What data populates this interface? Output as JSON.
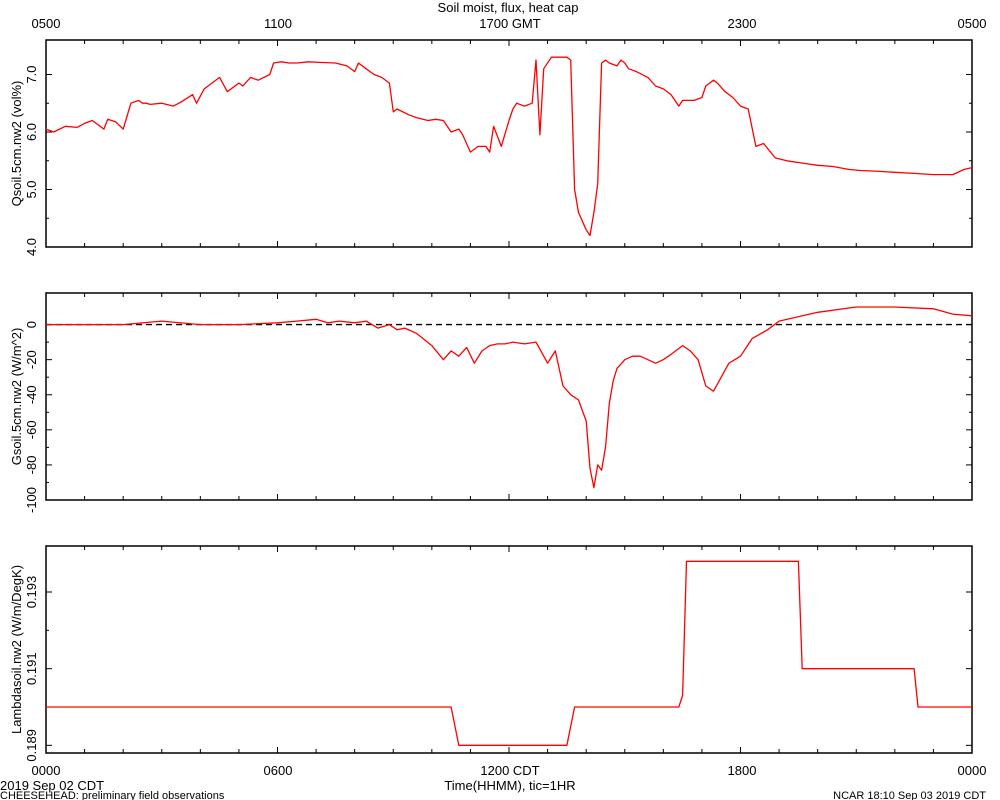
{
  "title": "Soil moist, flux, heat cap",
  "top_axis": {
    "tick_labels": [
      "0500",
      "1100",
      "1700 GMT",
      "2300",
      "0500"
    ]
  },
  "bottom_axis": {
    "tick_labels": [
      "0000",
      "0600",
      "1200 CDT",
      "1800",
      "0000"
    ],
    "xlabel": "Time(HHMM), tic=1HR"
  },
  "footer": {
    "date_left": "2019 Sep 02 CDT",
    "source_left": "CHEESEHEAD: preliminary field observations",
    "stamp_right": "NCAR 18:10 Sep 03 2019 CDT"
  },
  "colors": {
    "series": "#ff0000",
    "axes": "#000000",
    "zero_line": "#000000"
  },
  "chart_data": [
    {
      "type": "line",
      "ylabel": "Qsoil.5cm.nw2 (vol%)",
      "ylim": [
        4.0,
        7.6
      ],
      "yticks": [
        4.0,
        5.0,
        6.0,
        7.0
      ],
      "ytick_labels": [
        "4.0",
        "5.0",
        "6.0",
        "7.0"
      ],
      "xlim": [
        0,
        24
      ],
      "series": [
        {
          "x": [
            0,
            0.2,
            0.5,
            0.8,
            1.0,
            1.2,
            1.5,
            1.6,
            1.8,
            2.0,
            2.2,
            2.4,
            2.5,
            2.6,
            2.7,
            3.0,
            3.3,
            3.5,
            3.8,
            3.9,
            4.1,
            4.5,
            4.7,
            5.0,
            5.1,
            5.3,
            5.5,
            5.8,
            5.9,
            6.1,
            6.3,
            6.5,
            6.8,
            7.1,
            7.5,
            7.8,
            8.0,
            8.1,
            8.3,
            8.5,
            8.7,
            8.9,
            9.0,
            9.1,
            9.4,
            9.6,
            9.9,
            10.1,
            10.3,
            10.5,
            10.7,
            10.8,
            11.0,
            11.2,
            11.4,
            11.5,
            11.6,
            11.8,
            12.0,
            12.1,
            12.2,
            12.4,
            12.6,
            12.7,
            12.8,
            12.9,
            13.1,
            13.4,
            13.5,
            13.6,
            13.7,
            13.8,
            14.0,
            14.1,
            14.2,
            14.3,
            14.4,
            14.5,
            14.6,
            14.8,
            14.9,
            15.0,
            15.1,
            15.3,
            15.6,
            15.8,
            16.0,
            16.2,
            16.4,
            16.5,
            16.8,
            17.0,
            17.1,
            17.3,
            17.4,
            17.6,
            17.8,
            18.0,
            18.2,
            18.4,
            18.6,
            18.9,
            19.2,
            19.7,
            20.0,
            20.4,
            20.8,
            21.1,
            21.5,
            22.0,
            22.5,
            23.0,
            23.5,
            23.8,
            24.0
          ],
          "y": [
            6.05,
            6.0,
            6.1,
            6.08,
            6.15,
            6.2,
            6.05,
            6.22,
            6.18,
            6.05,
            6.5,
            6.55,
            6.5,
            6.5,
            6.48,
            6.5,
            6.45,
            6.52,
            6.65,
            6.5,
            6.75,
            6.95,
            6.7,
            6.85,
            6.8,
            6.95,
            6.9,
            7.0,
            7.2,
            7.22,
            7.2,
            7.2,
            7.22,
            7.21,
            7.2,
            7.15,
            7.05,
            7.2,
            7.1,
            7.0,
            6.95,
            6.85,
            6.35,
            6.4,
            6.3,
            6.25,
            6.2,
            6.22,
            6.2,
            6.0,
            6.05,
            5.95,
            5.65,
            5.75,
            5.75,
            5.65,
            6.1,
            5.75,
            6.2,
            6.4,
            6.5,
            6.45,
            6.5,
            7.25,
            5.95,
            7.1,
            7.3,
            7.3,
            7.3,
            7.25,
            5.0,
            4.6,
            4.3,
            4.2,
            4.6,
            5.1,
            7.2,
            7.25,
            7.2,
            7.15,
            7.25,
            7.2,
            7.1,
            7.05,
            6.95,
            6.8,
            6.75,
            6.65,
            6.45,
            6.55,
            6.55,
            6.6,
            6.8,
            6.9,
            6.85,
            6.7,
            6.6,
            6.45,
            6.4,
            5.75,
            5.8,
            5.55,
            5.5,
            5.45,
            5.42,
            5.4,
            5.35,
            5.33,
            5.32,
            5.3,
            5.28,
            5.26,
            5.26,
            5.35,
            5.38
          ]
        }
      ]
    },
    {
      "type": "line",
      "ylabel": "Gsoil.5cm.nw2 (W/m^2)",
      "ylim": [
        -100,
        18
      ],
      "yticks": [
        -100,
        -80,
        -60,
        -40,
        -20,
        0
      ],
      "ytick_labels": [
        "-100",
        "-80",
        "-60",
        "-40",
        "-20",
        "0"
      ],
      "xlim": [
        0,
        24
      ],
      "zero_line": true,
      "series": [
        {
          "x": [
            0,
            1,
            2,
            3,
            4,
            5,
            6,
            6.5,
            7,
            7.3,
            7.6,
            8,
            8.3,
            8.6,
            8.9,
            9.1,
            9.3,
            9.6,
            10,
            10.3,
            10.5,
            10.7,
            10.9,
            11.1,
            11.3,
            11.5,
            11.7,
            11.9,
            12.1,
            12.4,
            12.7,
            13.0,
            13.2,
            13.4,
            13.6,
            13.8,
            14.0,
            14.1,
            14.2,
            14.3,
            14.4,
            14.5,
            14.6,
            14.7,
            14.8,
            15.0,
            15.2,
            15.4,
            15.8,
            16.0,
            16.2,
            16.5,
            16.7,
            16.9,
            17.1,
            17.3,
            17.5,
            17.7,
            18.0,
            18.3,
            18.7,
            19,
            20,
            21,
            22,
            23,
            23.5,
            24
          ],
          "y": [
            0,
            0,
            0,
            2,
            0,
            0,
            1,
            2,
            3,
            1,
            2,
            1,
            2,
            -2,
            0,
            -3,
            -2,
            -5,
            -12,
            -20,
            -15,
            -18,
            -13,
            -22,
            -15,
            -12,
            -11,
            -11,
            -10,
            -11,
            -10,
            -22,
            -15,
            -35,
            -40,
            -43,
            -55,
            -82,
            -93,
            -80,
            -83,
            -70,
            -45,
            -32,
            -25,
            -20,
            -18,
            -18,
            -22,
            -20,
            -17,
            -12,
            -15,
            -20,
            -35,
            -38,
            -30,
            -22,
            -18,
            -8,
            -3,
            2,
            7,
            10,
            10,
            9,
            6,
            5
          ]
        }
      ]
    },
    {
      "type": "line",
      "ylabel": "Lambdasoil.nw2 (W/m/DegK)",
      "ylim": [
        0.1888,
        0.1942
      ],
      "yticks": [
        0.189,
        0.191,
        0.193
      ],
      "ytick_labels": [
        "0.189",
        "0.191",
        "0.193"
      ],
      "xlim": [
        0,
        24
      ],
      "series": [
        {
          "x": [
            0,
            10.5,
            10.7,
            13.5,
            13.7,
            16.4,
            16.5,
            16.6,
            19.5,
            19.6,
            22.5,
            22.6,
            24
          ],
          "y": [
            0.19,
            0.19,
            0.189,
            0.189,
            0.19,
            0.19,
            0.1903,
            0.1938,
            0.1938,
            0.191,
            0.191,
            0.19,
            0.19
          ]
        }
      ]
    }
  ]
}
